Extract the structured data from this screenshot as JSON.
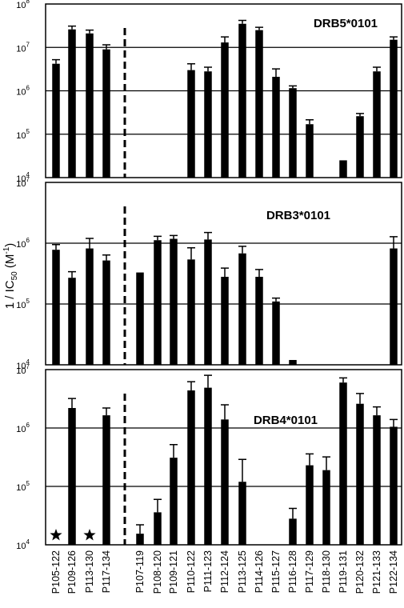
{
  "chart_data": {
    "type": "bar",
    "ylabel": "1 / IC50 (M-1)",
    "ylabel_main": "1 / IC",
    "ylabel_sub": "50",
    "ylabel_unit": " (M",
    "ylabel_unit_sup": "-1",
    "ylabel_close": ")",
    "yscale": "log",
    "categories": [
      "P105-122",
      "P109-126",
      "P113-130",
      "P117-134",
      "P107-119",
      "P108-120",
      "P109-121",
      "P110-122",
      "P111-123",
      "P112-124",
      "P113-125",
      "P114-126",
      "P115-127",
      "P116-128",
      "P117-129",
      "P118-130",
      "P119-131",
      "P120-132",
      "P121-133",
      "P122-134"
    ],
    "panels": [
      {
        "title": "DRB5*0101",
        "ylim": [
          10000,
          100000000
        ],
        "ticks": [
          {
            "value": 10000,
            "base": "10",
            "exp": "4"
          },
          {
            "value": 100000,
            "base": "10",
            "exp": "5"
          },
          {
            "value": 1000000,
            "base": "10",
            "exp": "6"
          },
          {
            "value": 10000000,
            "base": "10",
            "exp": "7"
          },
          {
            "value": 100000000,
            "base": "10",
            "exp": "8"
          }
        ],
        "values": [
          4200000,
          26000000,
          21000000,
          9000000,
          null,
          null,
          null,
          3000000,
          2800000,
          13000000,
          35000000,
          25000000,
          2100000,
          1150000,
          170000,
          null,
          25000,
          260000,
          2800000,
          15000000
        ],
        "errors": [
          5200000,
          31000000,
          25000000,
          11500000,
          null,
          null,
          null,
          4200000,
          3500000,
          17500000,
          42000000,
          29000000,
          3200000,
          1300000,
          215000,
          null,
          null,
          300000,
          3500000,
          17500000
        ],
        "stars": []
      },
      {
        "title": "DRB3*0101",
        "ylim": [
          10000,
          10000000
        ],
        "ticks": [
          {
            "value": 10000,
            "base": "10",
            "exp": "4"
          },
          {
            "value": 100000,
            "base": "10",
            "exp": "5"
          },
          {
            "value": 1000000,
            "base": "10",
            "exp": "6"
          },
          {
            "value": 10000000,
            "base": "10",
            "exp": "7"
          }
        ],
        "values": [
          780000,
          270000,
          820000,
          520000,
          330000,
          1120000,
          1180000,
          540000,
          1150000,
          280000,
          680000,
          280000,
          110000,
          12000,
          null,
          null,
          null,
          null,
          null,
          820000
        ],
        "errors": [
          950000,
          340000,
          1200000,
          640000,
          null,
          1300000,
          1340000,
          840000,
          1500000,
          390000,
          890000,
          370000,
          125000,
          null,
          null,
          null,
          null,
          null,
          null,
          1280000
        ],
        "stars": []
      },
      {
        "title": "DRB4*0101",
        "ylim": [
          10000,
          10000000
        ],
        "ticks": [
          {
            "value": 10000,
            "base": "10",
            "exp": "4"
          },
          {
            "value": 100000,
            "base": "10",
            "exp": "5"
          },
          {
            "value": 1000000,
            "base": "10",
            "exp": "6"
          },
          {
            "value": 10000000,
            "base": "10",
            "exp": "7"
          }
        ],
        "values": [
          null,
          2200000,
          null,
          1650000,
          15500,
          36000,
          310000,
          4400000,
          4900000,
          1400000,
          120000,
          null,
          null,
          28000,
          230000,
          190000,
          6000000,
          2600000,
          1650000,
          1050000
        ],
        "errors": [
          null,
          3200000,
          null,
          2200000,
          22000,
          60000,
          520000,
          6200000,
          8000000,
          2500000,
          290000,
          null,
          null,
          42000,
          360000,
          320000,
          7200000,
          3900000,
          2300000,
          1400000
        ],
        "stars": [
          0,
          2
        ]
      }
    ]
  }
}
